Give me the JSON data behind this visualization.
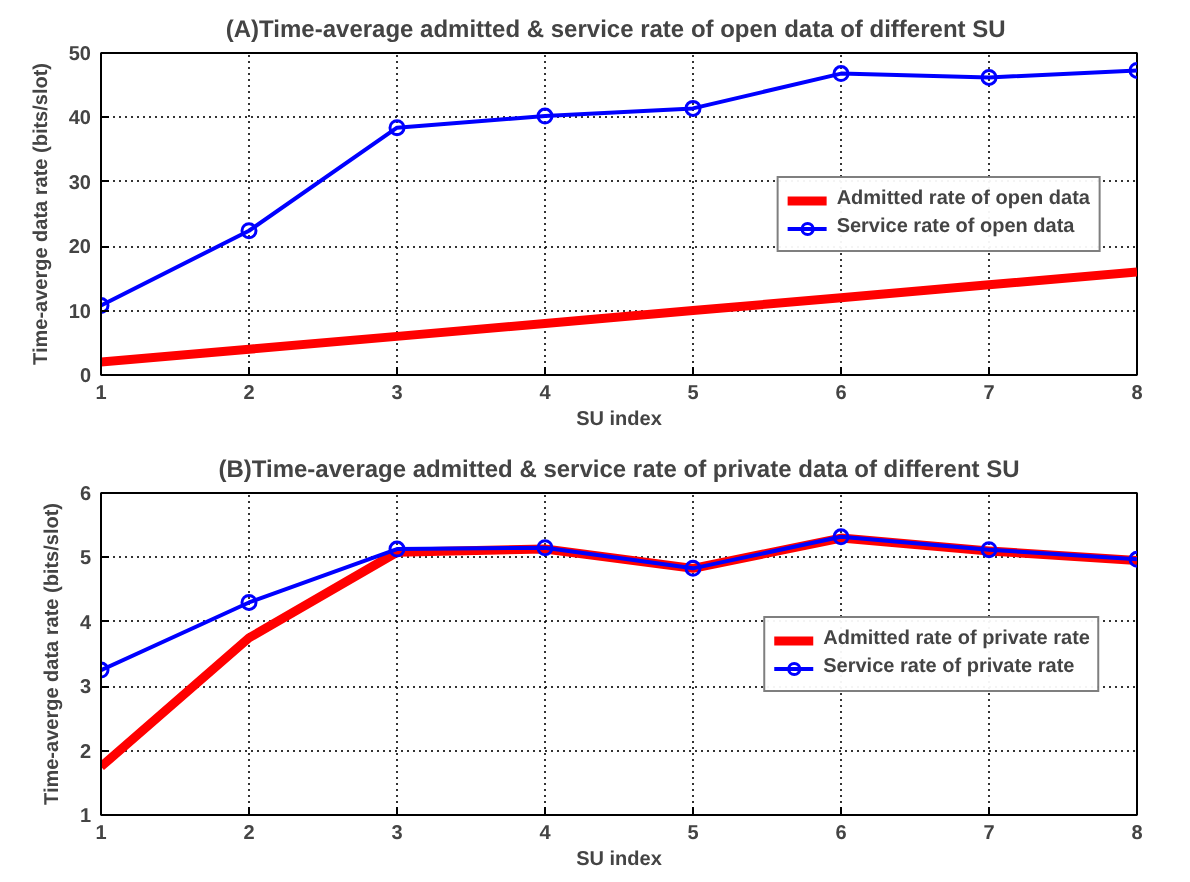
{
  "chart_data": [
    {
      "type": "line",
      "title": "(A)Time-average admitted & service rate of open data of different  SU",
      "xlabel": "SU index",
      "ylabel": "Time-averge data rate (bits/slot)",
      "x": [
        1,
        2,
        3,
        4,
        5,
        6,
        7,
        8
      ],
      "xlim": [
        1,
        8
      ],
      "xticks": [
        1,
        2,
        3,
        4,
        5,
        6,
        7,
        8
      ],
      "ylim": [
        0,
        50
      ],
      "yticks": [
        0,
        10,
        20,
        30,
        40,
        50
      ],
      "grid": true,
      "legend": "right",
      "line_style": "solid",
      "series": [
        {
          "name": "Admitted rate of open data",
          "color": "#ff0000",
          "marker": "none",
          "values": [
            2,
            4,
            6,
            8,
            10,
            12,
            14,
            16
          ]
        },
        {
          "name": "Service rate of open data",
          "color": "#0000ff",
          "marker": "circle",
          "values": [
            10.8,
            22.4,
            38.4,
            40.2,
            41.4,
            46.8,
            46.2,
            47.3
          ]
        }
      ]
    },
    {
      "type": "line",
      "title": "(B)Time-average admitted & service rate of private data of different SU",
      "xlabel": "SU index",
      "ylabel": "Time-averge data rate (bits/slot)",
      "x": [
        1,
        2,
        3,
        4,
        5,
        6,
        7,
        8
      ],
      "xlim": [
        1,
        8
      ],
      "xticks": [
        1,
        2,
        3,
        4,
        5,
        6,
        7,
        8
      ],
      "ylim": [
        1,
        6
      ],
      "yticks": [
        1,
        2,
        3,
        4,
        5,
        6
      ],
      "grid": true,
      "legend": "right",
      "line_style": "solid",
      "series": [
        {
          "name": "Admitted rate of private rate",
          "color": "#ff0000",
          "marker": "none",
          "values": [
            1.75,
            3.75,
            5.08,
            5.13,
            4.83,
            5.3,
            5.1,
            4.95
          ]
        },
        {
          "name": "Service rate of private rate",
          "color": "#0000ff",
          "marker": "circle",
          "values": [
            3.25,
            4.3,
            5.13,
            5.15,
            4.83,
            5.32,
            5.12,
            4.97
          ]
        }
      ]
    }
  ]
}
